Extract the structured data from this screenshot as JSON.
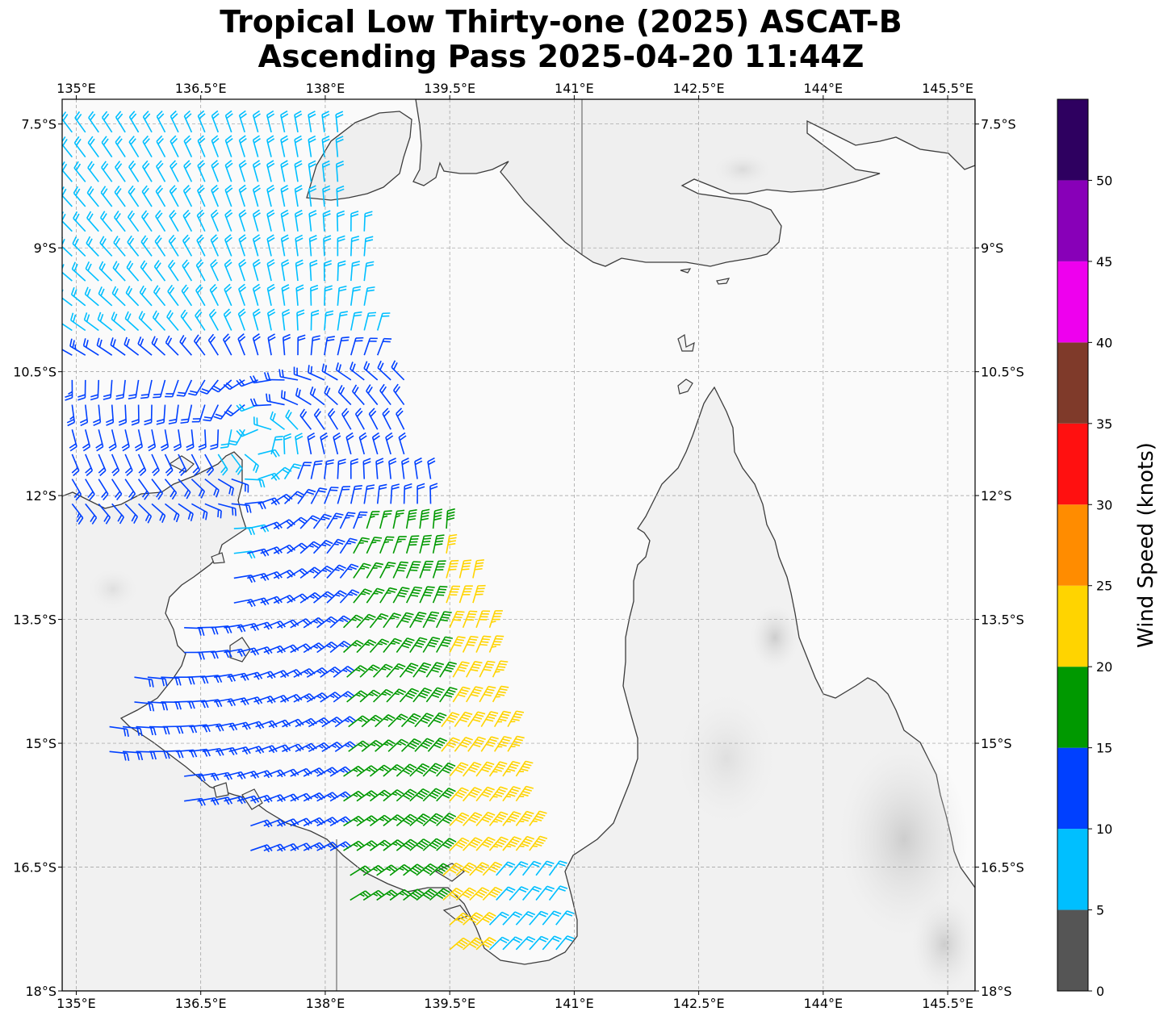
{
  "title": {
    "line1": "Tropical Low Thirty-one (2025) ASCAT-B",
    "line2": "Ascending Pass 2025-04-20 11:44Z"
  },
  "chart_data": {
    "type": "map-wind-barbs",
    "title": "Tropical Low Thirty-one (2025) ASCAT-B Ascending Pass 2025-04-20 11:44Z",
    "x_ticks": [
      "135°E",
      "136.5°E",
      "138°E",
      "139.5°E",
      "141°E",
      "142.5°E",
      "144°E",
      "145.5°E"
    ],
    "x_tick_values": [
      135,
      136.5,
      138,
      139.5,
      141,
      142.5,
      144,
      145.5
    ],
    "y_ticks": [
      "7.5°S",
      "9°S",
      "10.5°S",
      "12°S",
      "13.5°S",
      "15°S",
      "16.5°S",
      "18°S"
    ],
    "y_tick_values": [
      -7.5,
      -9,
      -10.5,
      -12,
      -13.5,
      -15,
      -16.5,
      -18
    ],
    "xlim": [
      134.83,
      145.83
    ],
    "ylim": [
      -18,
      -7.2
    ],
    "grid": true,
    "colorbar": {
      "label": "Wind Speed (knots)",
      "ticks": [
        "0",
        "5",
        "10",
        "15",
        "20",
        "25",
        "30",
        "35",
        "40",
        "45",
        "50"
      ],
      "bounds": [
        0,
        5,
        10,
        15,
        20,
        25,
        30,
        35,
        40,
        45,
        50,
        55
      ],
      "colors": [
        "#555555",
        "#00bfff",
        "#0040ff",
        "#009900",
        "#ffd400",
        "#ff8c00",
        "#ff1010",
        "#7f3a2a",
        "#ee00ee",
        "#8800b8",
        "#2e0060"
      ]
    },
    "swath_rows": [
      {
        "lat": -7.6,
        "lon_start": 134.95,
        "lon_end": 138.2
      },
      {
        "lat": -8.2,
        "lon_start": 134.95,
        "lon_end": 138.3
      },
      {
        "lat": -8.8,
        "lon_start": 134.95,
        "lon_end": 138.5
      },
      {
        "lat": -9.4,
        "lon_start": 134.95,
        "lon_end": 138.55
      },
      {
        "lat": -10.0,
        "lon_start": 134.95,
        "lon_end": 138.7
      },
      {
        "lat": -10.6,
        "lon_start": 134.95,
        "lon_end": 138.95
      },
      {
        "lat": -11.2,
        "lon_start": 134.95,
        "lon_end": 139.1
      },
      {
        "lat": -11.8,
        "lon_start": 134.95,
        "lon_end": 139.3
      },
      {
        "lat": -12.4,
        "lon_start": 136.9,
        "lon_end": 139.6
      },
      {
        "lat": -13.0,
        "lon_start": 136.9,
        "lon_end": 139.85
      },
      {
        "lat": -13.6,
        "lon_start": 136.3,
        "lon_end": 140.0
      },
      {
        "lat": -14.2,
        "lon_start": 135.7,
        "lon_end": 140.1
      },
      {
        "lat": -14.8,
        "lon_start": 135.4,
        "lon_end": 140.3
      },
      {
        "lat": -15.4,
        "lon_start": 136.3,
        "lon_end": 140.45
      },
      {
        "lat": -16.0,
        "lon_start": 137.1,
        "lon_end": 140.55
      },
      {
        "lat": -16.6,
        "lon_start": 138.3,
        "lon_end": 140.7
      },
      {
        "lat": -17.2,
        "lon_start": 139.5,
        "lon_end": 140.8
      }
    ]
  }
}
